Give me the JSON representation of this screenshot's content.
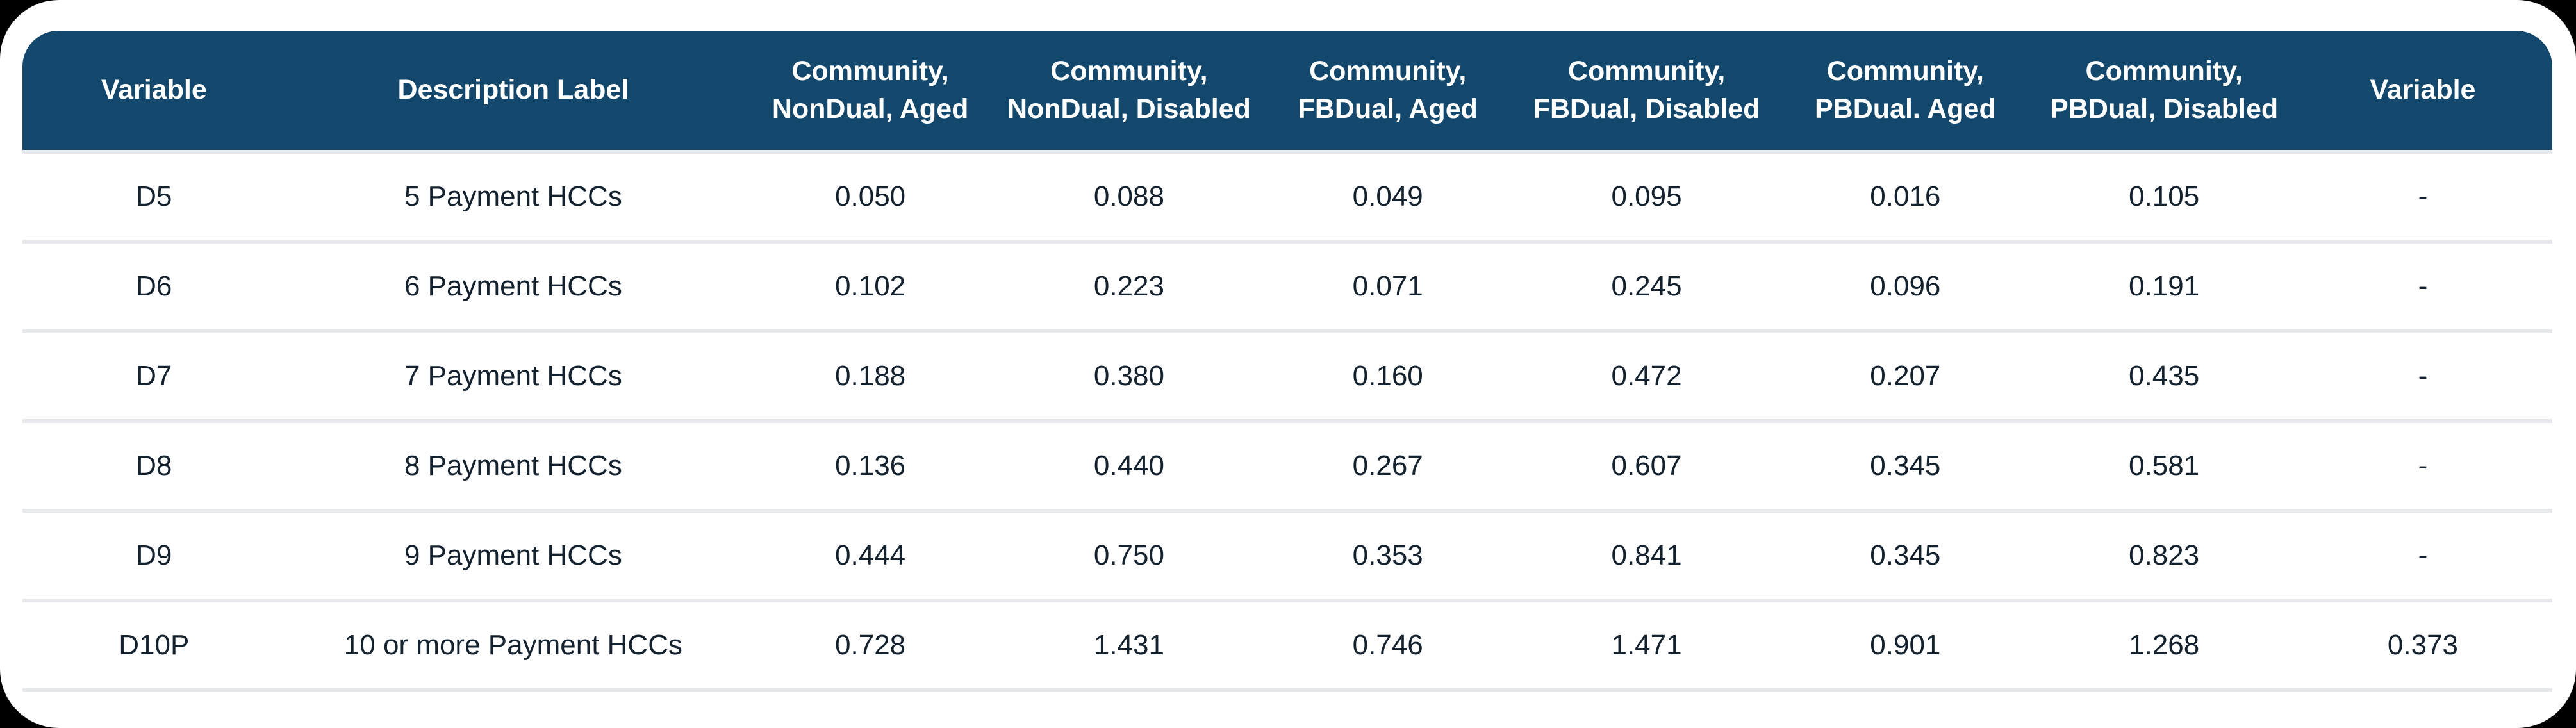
{
  "page": {
    "background_color": "#000000",
    "card_background_color": "#ffffff"
  },
  "table": {
    "header_background_color": "#13476B",
    "header_text_color": "#ffffff",
    "body_text_color": "#14212e",
    "divider_color": "#e7e9ec",
    "columns": [
      {
        "lines": [
          "Variable"
        ]
      },
      {
        "lines": [
          "Description Label"
        ]
      },
      {
        "lines": [
          "Community,",
          "NonDual, Aged"
        ]
      },
      {
        "lines": [
          "Community,",
          "NonDual, Disabled"
        ]
      },
      {
        "lines": [
          "Community,",
          "FBDual, Aged"
        ]
      },
      {
        "lines": [
          "Community,",
          "FBDual, Disabled"
        ]
      },
      {
        "lines": [
          "Community,",
          "PBDual. Aged"
        ]
      },
      {
        "lines": [
          "Community,",
          "PBDual, Disabled"
        ]
      },
      {
        "lines": [
          "Variable"
        ]
      }
    ],
    "rows": [
      {
        "cells": [
          "D5",
          "5 Payment HCCs",
          "0.050",
          "0.088",
          "0.049",
          "0.095",
          "0.016",
          "0.105",
          "-"
        ]
      },
      {
        "cells": [
          "D6",
          "6 Payment HCCs",
          "0.102",
          "0.223",
          "0.071",
          "0.245",
          "0.096",
          "0.191",
          "-"
        ]
      },
      {
        "cells": [
          "D7",
          "7 Payment HCCs",
          "0.188",
          "0.380",
          "0.160",
          "0.472",
          "0.207",
          "0.435",
          "-"
        ]
      },
      {
        "cells": [
          "D8",
          "8 Payment HCCs",
          "0.136",
          "0.440",
          "0.267",
          "0.607",
          "0.345",
          "0.581",
          "-"
        ]
      },
      {
        "cells": [
          "D9",
          "9 Payment HCCs",
          "0.444",
          "0.750",
          "0.353",
          "0.841",
          "0.345",
          "0.823",
          "-"
        ]
      },
      {
        "cells": [
          "D10P",
          "10 or more Payment HCCs",
          "0.728",
          "1.431",
          "0.746",
          "1.471",
          "0.901",
          "1.268",
          "0.373"
        ]
      }
    ]
  }
}
